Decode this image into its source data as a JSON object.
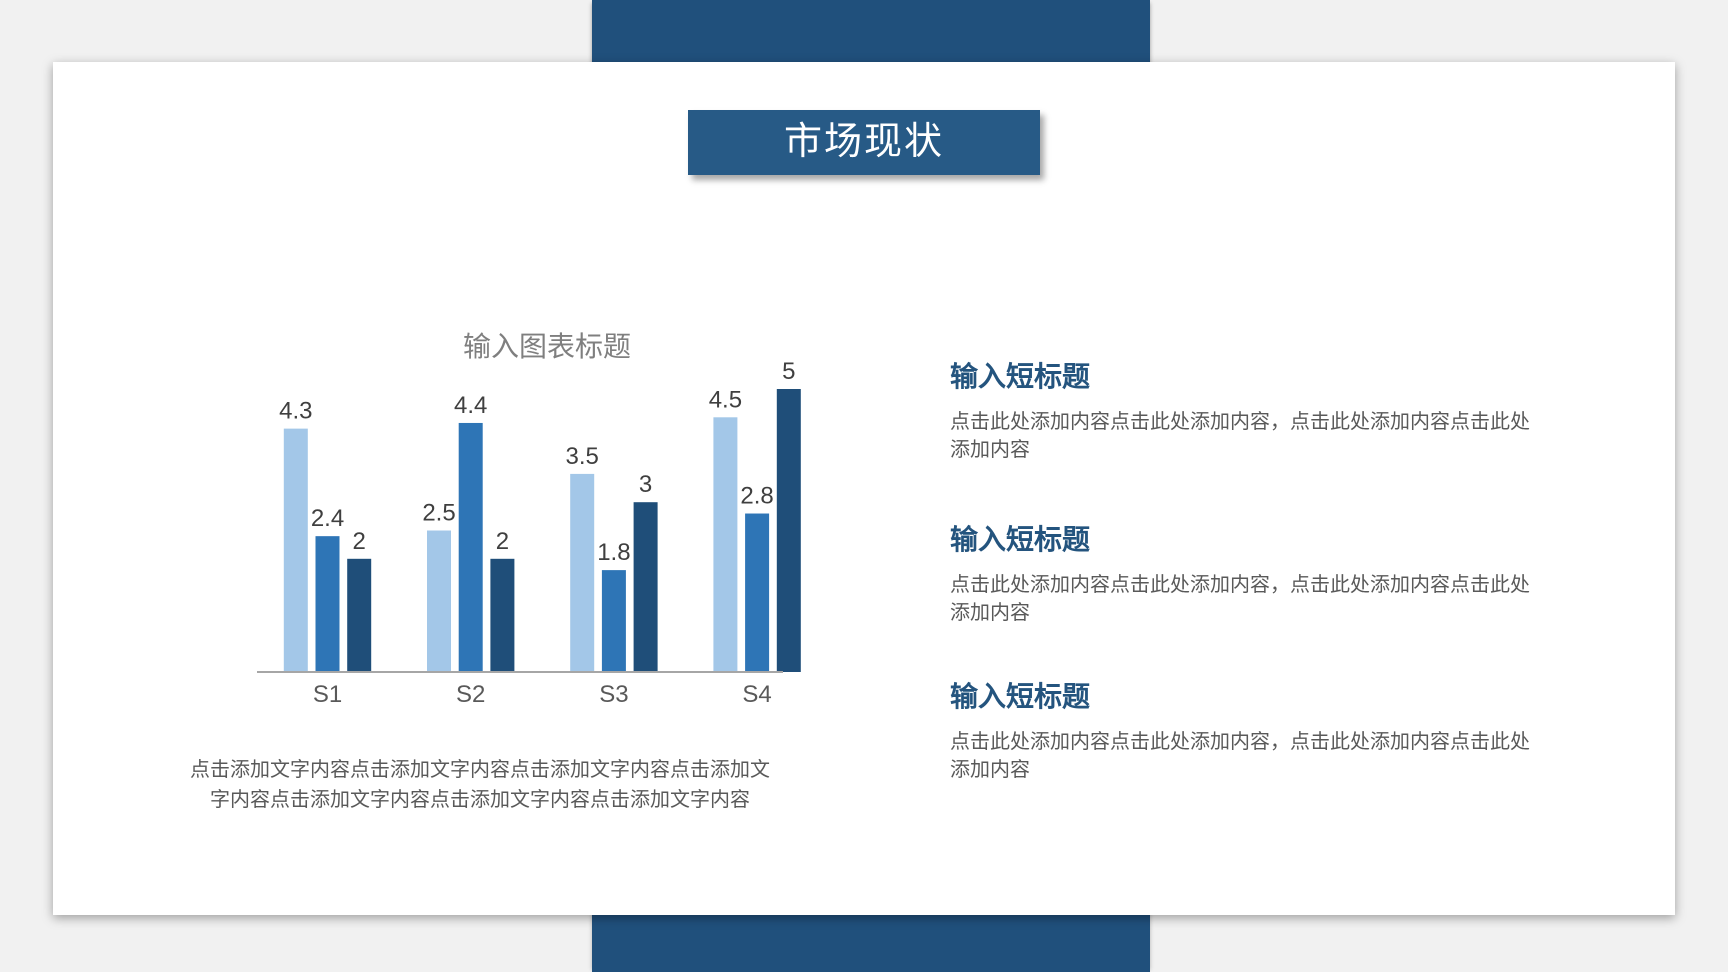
{
  "page": {
    "background_color": "#F1F1F1",
    "ribbon_color": "#20507C",
    "card_color": "#FFFFFF"
  },
  "header": {
    "title": "市场现状",
    "banner_color": "#275A86",
    "title_color": "#FFFFFF"
  },
  "chart_data": {
    "type": "bar",
    "title": "输入图表标题",
    "title_color": "#7F7F7F",
    "categories": [
      "S1",
      "S2",
      "S3",
      "S4"
    ],
    "series": [
      {
        "name": "light-blue-series",
        "color": "#A3C7E8",
        "values": [
          4.3,
          2.5,
          3.5,
          4.5
        ]
      },
      {
        "name": "medium-blue-series",
        "color": "#2E75B6",
        "values": [
          2.4,
          4.4,
          1.8,
          2.8
        ]
      },
      {
        "name": "dark-blue-series",
        "color": "#1F4E79",
        "values": [
          2,
          2,
          3,
          5
        ]
      }
    ],
    "ylim": [
      0,
      5
    ],
    "data_labels": true,
    "data_label_color": "#3F3F3F",
    "category_label_color": "#595959",
    "axis_color": "#A6A6A6",
    "legend": "none",
    "grid": false,
    "xlabel": "",
    "ylabel": ""
  },
  "chart_caption": "点击添加文字内容点击添加文字内容点击添加文字内容点击添加文字内容点击添加文字内容点击添加文字内容点击添加文字内容",
  "content_blocks": [
    {
      "heading": "输入短标题",
      "body": "点击此处添加内容点击此处添加内容，点击此处添加内容点击此处添加内容"
    },
    {
      "heading": "输入短标题",
      "body": "点击此处添加内容点击此处添加内容，点击此处添加内容点击此处添加内容"
    },
    {
      "heading": "输入短标题",
      "body": "点击此处添加内容点击此处添加内容，点击此处添加内容点击此处添加内容"
    }
  ]
}
